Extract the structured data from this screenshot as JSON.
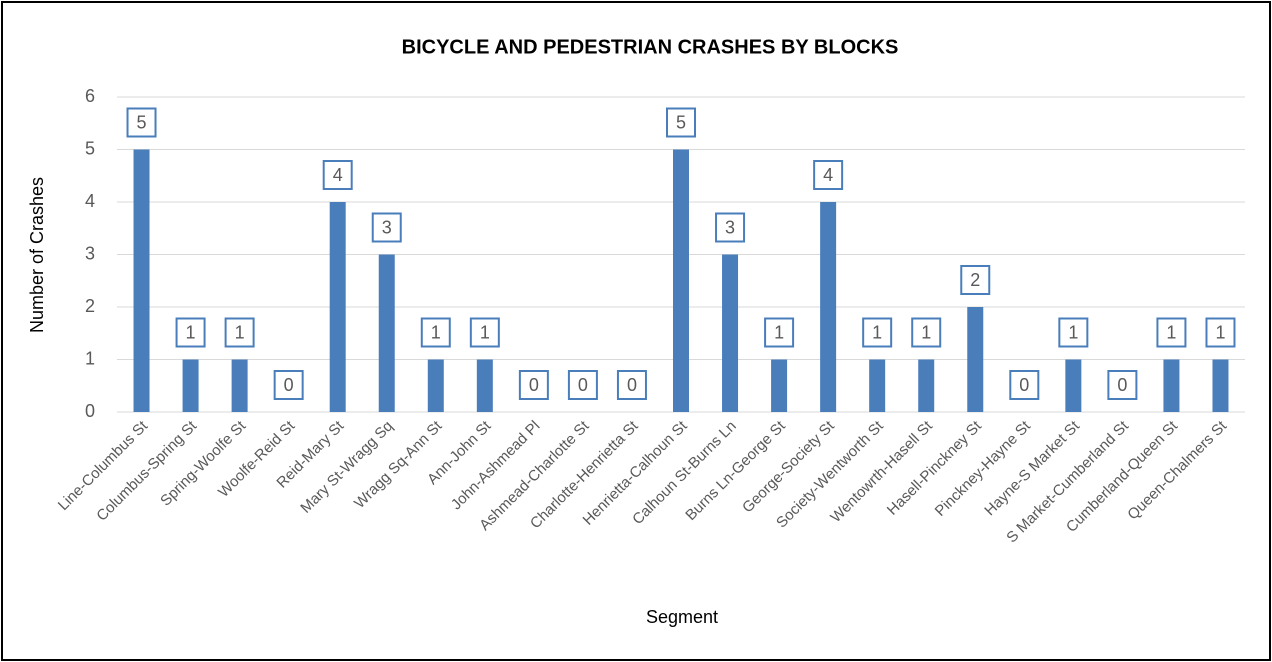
{
  "chart_data": {
    "type": "bar",
    "title": "BICYCLE AND PEDESTRIAN CRASHES BY BLOCKS",
    "x_label": "Segment",
    "y_label": "Number of Crashes",
    "categories": [
      "Line-Columbus St",
      "Columbus-Spring St",
      "Spring-Woolfe St",
      "Woolfe-Reid St",
      "Reid-Mary St",
      "Mary St-Wragg Sq",
      "Wragg Sq-Ann St",
      "Ann-John St",
      "John-Ashmead Pl",
      "Ashmead-Charlotte St",
      "Charlotte-Henrietta St",
      "Henrietta-Calhoun St",
      "Calhoun St-Burns Ln",
      "Burns Ln-George St",
      "George-Society St",
      "Society-Wentworth St",
      "Wentowrth-Hasell St",
      "Hasell-Pinckney St",
      "Pinckney-Hayne St",
      "Hayne-S Market St",
      "S Market-Cumberland St",
      "Cumberland-Queen St",
      "Queen-Chalmers St"
    ],
    "values": [
      5,
      1,
      1,
      0,
      4,
      3,
      1,
      1,
      0,
      0,
      0,
      5,
      3,
      1,
      4,
      1,
      1,
      2,
      0,
      1,
      0,
      1,
      1
    ],
    "color": "#4a7ebb",
    "ylim": [
      0,
      6
    ],
    "yticks": [
      0,
      1,
      2,
      3,
      4,
      5,
      6
    ],
    "grid": true
  }
}
